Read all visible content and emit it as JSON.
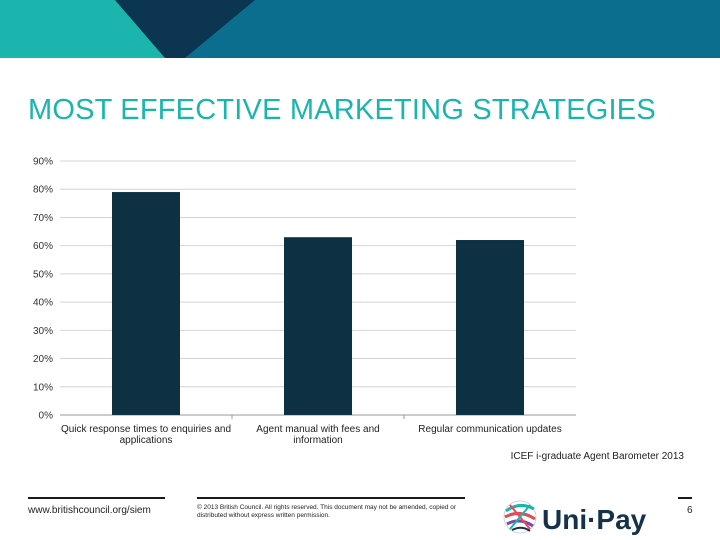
{
  "slide": {
    "title": "MOST EFFECTIVE MARKETING STRATEGIES",
    "source": "ICEF i-graduate Agent Barometer 2013",
    "colors": {
      "banner_teal": "#1bb5ad",
      "banner_dark": "#0b3550",
      "banner_blue": "#0c6e8e",
      "title_teal": "#1bb5ad",
      "bar": "#0d3142"
    }
  },
  "chart_data": {
    "type": "bar",
    "categories": [
      "Quick response times to enquiries and applications",
      "Agent manual with fees and information",
      "Regular communication updates"
    ],
    "category_lines": [
      [
        "Quick response times to enquiries and",
        "applications"
      ],
      [
        "Agent manual with fees and",
        "information"
      ],
      [
        "Regular communication updates"
      ]
    ],
    "values": [
      79,
      63,
      62
    ],
    "ylim": [
      0,
      90
    ],
    "yticks": [
      "0%",
      "10%",
      "20%",
      "30%",
      "40%",
      "50%",
      "60%",
      "70%",
      "80%",
      "90%"
    ],
    "grid": true,
    "legend": "none"
  },
  "footer": {
    "url": "www.britishcouncil.org/siem",
    "copyright": "© 2013 British Council. All rights reserved. This document may not be amended, copied or distributed without express written permission.",
    "logo_text": "Uni·Pay",
    "page_number": "6"
  }
}
